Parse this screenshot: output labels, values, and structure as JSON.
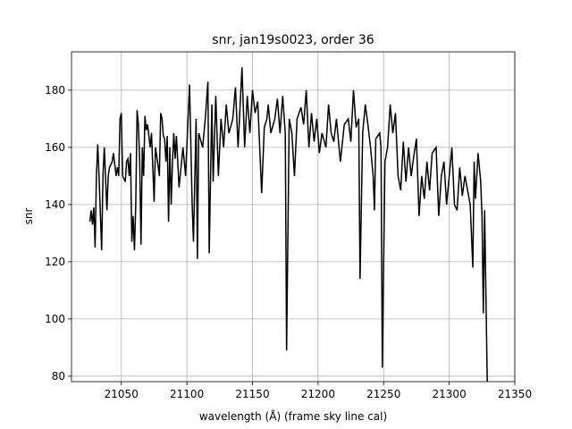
{
  "chart_data": {
    "type": "line",
    "title": "snr, jan19s0023, order 36",
    "xlabel": "wavelength (Å) (frame sky line cal)",
    "ylabel": "snr",
    "xlim": [
      21012,
      21350
    ],
    "ylim": [
      78.1,
      193.4
    ],
    "xticks": [
      21050,
      21100,
      21150,
      21200,
      21250,
      21300,
      21350
    ],
    "yticks": [
      80,
      100,
      120,
      140,
      160,
      180
    ],
    "grid": true,
    "x": [
      21026,
      21027,
      21028,
      21029,
      21030,
      21031,
      21032,
      21033,
      21035,
      21036,
      21037,
      21039,
      21040,
      21041,
      21043,
      21044,
      21046,
      21047,
      21048,
      21049,
      21050,
      21051,
      21053,
      21054,
      21055,
      21056,
      21057,
      21058,
      21059,
      21060,
      21061,
      21062,
      21063,
      21064,
      21065,
      21066,
      21067,
      21068,
      21069,
      21070,
      21072,
      21073,
      21075,
      21076,
      21077,
      21079,
      21080,
      21081,
      21082,
      21083,
      21084,
      21085,
      21086,
      21087,
      21088,
      21089,
      21090,
      21091,
      21092,
      21094,
      21097,
      21099,
      21102,
      21104,
      21105,
      21107,
      21108,
      21109,
      21112,
      21114,
      21116,
      21117,
      21119,
      21120,
      21122,
      21124,
      21126,
      21128,
      21130,
      21132,
      21135,
      21137,
      21139,
      21142,
      21144,
      21146,
      21148,
      21150,
      21152,
      21154,
      21157,
      21159,
      21161,
      21162,
      21164,
      21167,
      21169,
      21171,
      21173,
      21175,
      21176,
      21178,
      21180,
      21182,
      21184,
      21187,
      21189,
      21191,
      21193,
      21195,
      21197,
      21199,
      21201,
      21203,
      21206,
      21208,
      21210,
      21212,
      21214,
      21217,
      21220,
      21223,
      21225,
      21227,
      21229,
      21231,
      21232,
      21234,
      21236,
      21238,
      21240,
      21242,
      21243,
      21244,
      21247,
      21248,
      21249,
      21251,
      21253,
      21255,
      21257,
      21259,
      21261,
      21263,
      21265,
      21267,
      21269,
      21271,
      21273,
      21275,
      21277,
      21279,
      21281,
      21283,
      21285,
      21287,
      21290,
      21292,
      21294,
      21296,
      21298,
      21300,
      21302,
      21304,
      21306,
      21308,
      21310,
      21312,
      21314,
      21316,
      21318,
      21319,
      21320,
      21322,
      21324,
      21325,
      21326,
      21327,
      21329
    ],
    "series": [
      {
        "name": "snr",
        "color": "#000000",
        "values": [
          134,
          138,
          133,
          139,
          125,
          150,
          161,
          150,
          124,
          150,
          160,
          138,
          150,
          153,
          155,
          158,
          150,
          153,
          150,
          170,
          172,
          150,
          148,
          155,
          156,
          150,
          158,
          127,
          136,
          124,
          140,
          173,
          168,
          155,
          126,
          160,
          150,
          171,
          166,
          168,
          160,
          165,
          141,
          160,
          157,
          150,
          172,
          170,
          164,
          163,
          155,
          164,
          134,
          160,
          140,
          155,
          165,
          156,
          164,
          146,
          160,
          150,
          182,
          140,
          127,
          170,
          121,
          165,
          160,
          170,
          183,
          123,
          175,
          148,
          178,
          150,
          170,
          160,
          175,
          165,
          170,
          181,
          160,
          188,
          160,
          178,
          165,
          180,
          172,
          176,
          144,
          167,
          170,
          175,
          165,
          170,
          177,
          165,
          178,
          165,
          89,
          170,
          165,
          150,
          170,
          174,
          168,
          180,
          160,
          172,
          162,
          170,
          158,
          165,
          160,
          175,
          165,
          162,
          170,
          155,
          168,
          170,
          162,
          180,
          167,
          170,
          114,
          165,
          175,
          168,
          160,
          150,
          138,
          163,
          165,
          160,
          83,
          155,
          160,
          175,
          165,
          172,
          150,
          145,
          162,
          148,
          160,
          150,
          157,
          163,
          136,
          150,
          142,
          155,
          145,
          158,
          160,
          136,
          150,
          155,
          140,
          150,
          160,
          140,
          138,
          153,
          143,
          150,
          145,
          140,
          118,
          155,
          142,
          158,
          148,
          136,
          102,
          138,
          78
        ]
      }
    ]
  }
}
